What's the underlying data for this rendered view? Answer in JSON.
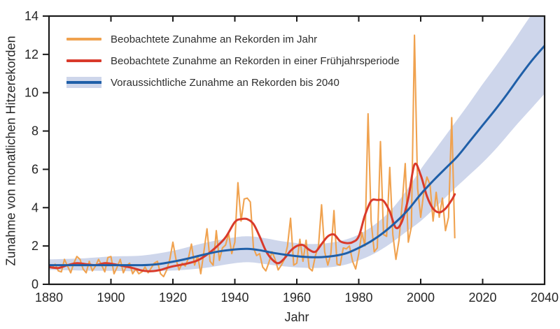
{
  "colors": {
    "orange": "#F0A24F",
    "red": "#D93A2B",
    "blue": "#1F5FA8",
    "band": "#CED6EB",
    "frame": "#1A1A1A",
    "text": "#262626"
  },
  "axes": {
    "x_label": "Jahr",
    "y_label": "Zunahme von monatlichen Hitzerekorden",
    "x_ticks": [
      1880,
      1900,
      1920,
      1940,
      1960,
      1980,
      2000,
      2020,
      2040
    ],
    "y_ticks": [
      0,
      2,
      4,
      6,
      8,
      10,
      12,
      14
    ]
  },
  "legend": {
    "items": [
      {
        "label": "Beobachtete Zunahme an Rekorden im Jahr",
        "swatch": "orange-line"
      },
      {
        "label": "Beobachtete Zunahme an Rekorden in einer Frühjahrsperiode",
        "swatch": "red-line"
      },
      {
        "label": "Voraussichtliche Zunahme an Rekorden bis 2040",
        "swatch": "blue-line-with-band"
      }
    ]
  },
  "chart_data": {
    "type": "line",
    "title": "",
    "xlabel": "Jahr",
    "ylabel": "Zunahme von monatlichen Hitzerekorden",
    "xlim": [
      1880,
      2040
    ],
    "ylim": [
      0,
      14
    ],
    "grid": false,
    "legend_position": "top-left-inside",
    "series": [
      {
        "name": "Beobachtete Zunahme an Rekorden im Jahr",
        "kind": "jagged-yearly",
        "color": "#F0A24F",
        "x_start": 1880,
        "x_step": 1,
        "y": [
          1.0,
          0.85,
          1.05,
          0.7,
          0.65,
          1.3,
          0.95,
          0.6,
          1.1,
          1.45,
          1.3,
          0.8,
          0.6,
          1.2,
          0.7,
          0.95,
          1.3,
          1.0,
          0.65,
          1.4,
          1.45,
          0.55,
          0.9,
          1.3,
          0.6,
          0.95,
          1.1,
          0.55,
          0.8,
          0.55,
          0.65,
          0.9,
          0.6,
          0.85,
          1.1,
          1.2,
          0.55,
          0.4,
          0.75,
          1.3,
          2.2,
          1.3,
          0.75,
          1.1,
          0.95,
          1.35,
          2.1,
          1.0,
          1.5,
          0.55,
          1.7,
          2.9,
          1.2,
          1.0,
          2.8,
          1.25,
          1.9,
          2.05,
          2.65,
          1.6,
          2.2,
          5.3,
          3.3,
          4.45,
          4.5,
          4.3,
          1.9,
          1.5,
          1.6,
          0.9,
          0.7,
          1.15,
          1.7,
          1.3,
          0.75,
          1.0,
          1.3,
          2.0,
          3.45,
          1.0,
          1.1,
          2.35,
          1.2,
          2.3,
          0.85,
          0.7,
          1.5,
          2.0,
          4.15,
          1.7,
          1.0,
          1.6,
          3.85,
          1.05,
          1.0,
          1.9,
          1.85,
          2.0,
          1.2,
          0.8,
          1.6,
          2.7,
          2.0,
          8.9,
          3.3,
          1.7,
          1.9,
          7.45,
          2.6,
          2.5,
          6.1,
          2.6,
          1.3,
          2.3,
          4.2,
          6.3,
          2.2,
          3.0,
          13.0,
          5.0,
          3.5,
          4.8,
          5.6,
          5.2,
          3.3,
          4.8,
          3.5,
          4.5,
          2.8,
          3.5,
          8.7,
          2.4
        ]
      },
      {
        "name": "Beobachtete Zunahme an Rekorden in einer Frühjahrsperiode",
        "kind": "smooth",
        "color": "#D93A2B",
        "x": [
          1880,
          1883,
          1886,
          1889,
          1892,
          1895,
          1898,
          1901,
          1904,
          1907,
          1910,
          1913,
          1916,
          1919,
          1922,
          1925,
          1928,
          1931,
          1934,
          1937,
          1940,
          1942,
          1944,
          1946,
          1948,
          1950,
          1952,
          1954,
          1956,
          1958,
          1960,
          1962,
          1964,
          1966,
          1968,
          1970,
          1972,
          1974,
          1976,
          1978,
          1980,
          1982,
          1984,
          1986,
          1988,
          1990,
          1992,
          1994,
          1996,
          1998,
          2000,
          2002,
          2004,
          2006,
          2008,
          2010,
          2011
        ],
        "y": [
          0.9,
          0.85,
          1.0,
          1.1,
          1.05,
          1.0,
          1.1,
          1.05,
          0.95,
          0.85,
          0.72,
          0.68,
          0.75,
          0.9,
          1.0,
          1.1,
          1.25,
          1.55,
          1.95,
          2.45,
          3.25,
          3.4,
          3.4,
          3.15,
          2.5,
          1.75,
          1.3,
          1.1,
          1.35,
          1.75,
          2.0,
          2.05,
          1.8,
          1.7,
          2.1,
          2.5,
          2.6,
          2.25,
          2.15,
          2.2,
          2.5,
          3.6,
          4.35,
          4.4,
          4.35,
          3.8,
          2.95,
          3.3,
          4.5,
          6.25,
          5.7,
          4.6,
          3.95,
          3.75,
          3.95,
          4.4,
          4.7
        ]
      },
      {
        "name": "Voraussichtliche Zunahme an Rekorden bis 2040",
        "kind": "smooth-with-band",
        "color": "#1F5FA8",
        "band_color": "#CED6EB",
        "x": [
          1880,
          1890,
          1900,
          1910,
          1915,
          1920,
          1925,
          1930,
          1935,
          1940,
          1944,
          1948,
          1952,
          1956,
          1960,
          1964,
          1968,
          1972,
          1976,
          1980,
          1984,
          1988,
          1992,
          1996,
          2000,
          2004,
          2008,
          2012,
          2016,
          2020,
          2024,
          2028,
          2032,
          2036,
          2040
        ],
        "y": [
          1.0,
          1.0,
          1.0,
          1.0,
          1.05,
          1.18,
          1.35,
          1.55,
          1.72,
          1.82,
          1.85,
          1.78,
          1.65,
          1.55,
          1.47,
          1.42,
          1.42,
          1.48,
          1.62,
          1.9,
          2.25,
          2.7,
          3.25,
          3.9,
          4.7,
          5.4,
          6.05,
          6.7,
          7.5,
          8.3,
          9.1,
          9.95,
          10.85,
          11.7,
          12.45
        ],
        "band_x": [
          1880,
          1890,
          1900,
          1910,
          1920,
          1930,
          1940,
          1945,
          1950,
          1955,
          1960,
          1965,
          1970,
          1975,
          1980,
          1985,
          1990,
          1995,
          2000,
          2005,
          2010,
          2015,
          2020,
          2025,
          2030,
          2035,
          2040
        ],
        "band_upper": [
          1.3,
          1.35,
          1.45,
          1.5,
          1.75,
          2.15,
          2.45,
          2.5,
          2.4,
          2.25,
          2.15,
          2.1,
          2.15,
          2.3,
          2.6,
          3.1,
          3.8,
          4.8,
          6.0,
          7.1,
          8.2,
          9.3,
          10.45,
          11.55,
          12.7,
          13.9,
          15.0
        ],
        "band_lower": [
          0.75,
          0.72,
          0.7,
          0.68,
          0.72,
          0.85,
          1.1,
          1.15,
          1.05,
          0.95,
          0.88,
          0.85,
          0.88,
          1.0,
          1.25,
          1.6,
          2.1,
          2.7,
          3.3,
          4.05,
          4.85,
          5.6,
          6.35,
          7.2,
          8.15,
          9.05,
          9.95
        ]
      }
    ]
  }
}
